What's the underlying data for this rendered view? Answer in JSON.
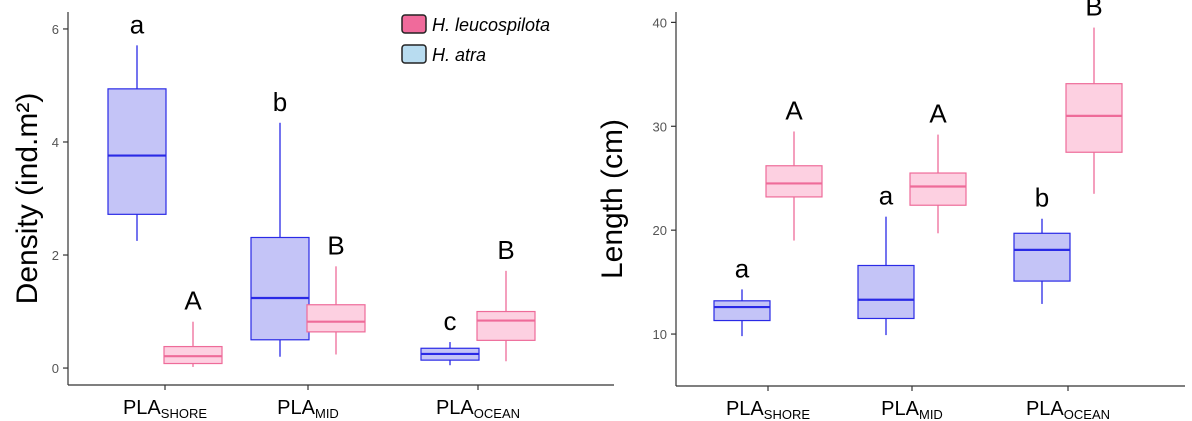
{
  "legend": {
    "entries": [
      {
        "label": "H. leucospilota",
        "color": "#f06a9b",
        "fill": "#f7a7c4"
      },
      {
        "label": "H. atra",
        "color": "#4a90c8",
        "fill": "#b8dcf0"
      }
    ],
    "placement": "top-right of left panel"
  },
  "colors": {
    "atra_box": "#c4c4f7",
    "atra_line": "#2a2ae6",
    "leuco_box": "#fdd0e1",
    "leuco_line": "#ee6b99",
    "axis": "#333333"
  },
  "chart_data": [
    {
      "type": "box",
      "ylabel": "Density (ind.m²)",
      "xlabel": "",
      "ylim": [
        -0.3,
        6.3
      ],
      "yticks": [
        0,
        2,
        4,
        6
      ],
      "grid": false,
      "categories": [
        {
          "main": "PLA",
          "sub": "SHORE"
        },
        {
          "main": "PLA",
          "sub": "MID"
        },
        {
          "main": "PLA",
          "sub": "OCEAN"
        }
      ],
      "series": [
        {
          "name": "H. atra",
          "style": "atra",
          "boxes": [
            {
              "min": 2.25,
              "q1": 2.72,
              "median": 3.76,
              "q3": 4.94,
              "max": 5.71,
              "letter": "a"
            },
            {
              "min": 0.2,
              "q1": 0.5,
              "median": 1.24,
              "q3": 2.31,
              "max": 4.34,
              "letter": "b"
            },
            {
              "min": 0.05,
              "q1": 0.14,
              "median": 0.25,
              "q3": 0.35,
              "max": 0.46,
              "letter": "c"
            }
          ]
        },
        {
          "name": "H. leucospilota",
          "style": "leuco",
          "boxes": [
            {
              "min": 0.02,
              "q1": 0.08,
              "median": 0.21,
              "q3": 0.38,
              "max": 0.82,
              "letter": "A"
            },
            {
              "min": 0.24,
              "q1": 0.64,
              "median": 0.82,
              "q3": 1.12,
              "max": 1.8,
              "letter": "B"
            },
            {
              "min": 0.12,
              "q1": 0.49,
              "median": 0.84,
              "q3": 1.0,
              "max": 1.72,
              "letter": "B"
            }
          ]
        }
      ]
    },
    {
      "type": "box",
      "ylabel": "Length (cm)",
      "xlabel": "",
      "ylim": [
        5,
        41
      ],
      "yticks": [
        10,
        20,
        30,
        40
      ],
      "grid": false,
      "categories": [
        {
          "main": "PLA",
          "sub": "SHORE"
        },
        {
          "main": "PLA",
          "sub": "MID"
        },
        {
          "main": "PLA",
          "sub": "OCEAN"
        }
      ],
      "series": [
        {
          "name": "H. atra",
          "style": "atra",
          "boxes": [
            {
              "min": 9.8,
              "q1": 11.3,
              "median": 12.6,
              "q3": 13.2,
              "max": 14.3,
              "letter": "a"
            },
            {
              "min": 9.9,
              "q1": 11.5,
              "median": 13.3,
              "q3": 16.6,
              "max": 21.3,
              "letter": "a"
            },
            {
              "min": 12.9,
              "q1": 15.1,
              "median": 18.1,
              "q3": 19.7,
              "max": 21.1,
              "letter": "b"
            }
          ]
        },
        {
          "name": "H. leucospilota",
          "style": "leuco",
          "boxes": [
            {
              "min": 19.0,
              "q1": 23.2,
              "median": 24.5,
              "q3": 26.2,
              "max": 29.5,
              "letter": "A"
            },
            {
              "min": 19.7,
              "q1": 22.4,
              "median": 24.2,
              "q3": 25.5,
              "max": 29.2,
              "letter": "A"
            },
            {
              "min": 23.5,
              "q1": 27.5,
              "median": 31.0,
              "q3": 34.1,
              "max": 39.5,
              "letter": "B"
            }
          ]
        }
      ]
    }
  ]
}
